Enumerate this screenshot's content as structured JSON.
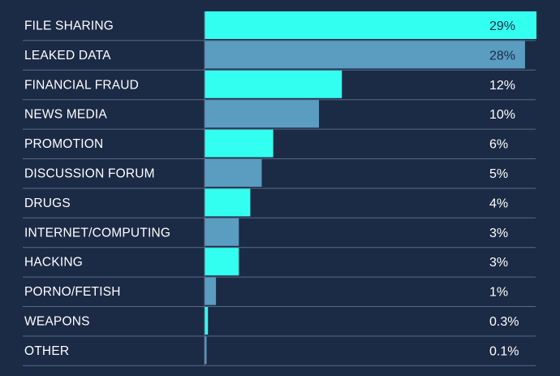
{
  "chart_data": {
    "type": "bar",
    "orientation": "horizontal",
    "categories": [
      "FILE SHARING",
      "LEAKED DATA",
      "FINANCIAL FRAUD",
      "NEWS MEDIA",
      "PROMOTION",
      "DISCUSSION FORUM",
      "DRUGS",
      "INTERNET/COMPUTING",
      "HACKING",
      "PORNO/FETISH",
      "WEAPONS",
      "OTHER"
    ],
    "values": [
      29,
      28,
      12,
      10,
      6,
      5,
      4,
      3,
      3,
      1,
      0.3,
      0.1
    ],
    "value_labels": [
      "29%",
      "28%",
      "12%",
      "10%",
      "6%",
      "5%",
      "4%",
      "3%",
      "3%",
      "1%",
      "0.3%",
      "0.1%"
    ],
    "title": "",
    "xlabel": "",
    "ylabel": "",
    "xlim": [
      0,
      29
    ],
    "grid": false,
    "colors": {
      "background": "#1b2a45",
      "bar_primary": "#33fff0",
      "bar_secondary": "#5b9cc1",
      "divider": "#5a6a85",
      "label_text": "#ffffff",
      "value_text_on_bar": "#1b2a45"
    }
  }
}
